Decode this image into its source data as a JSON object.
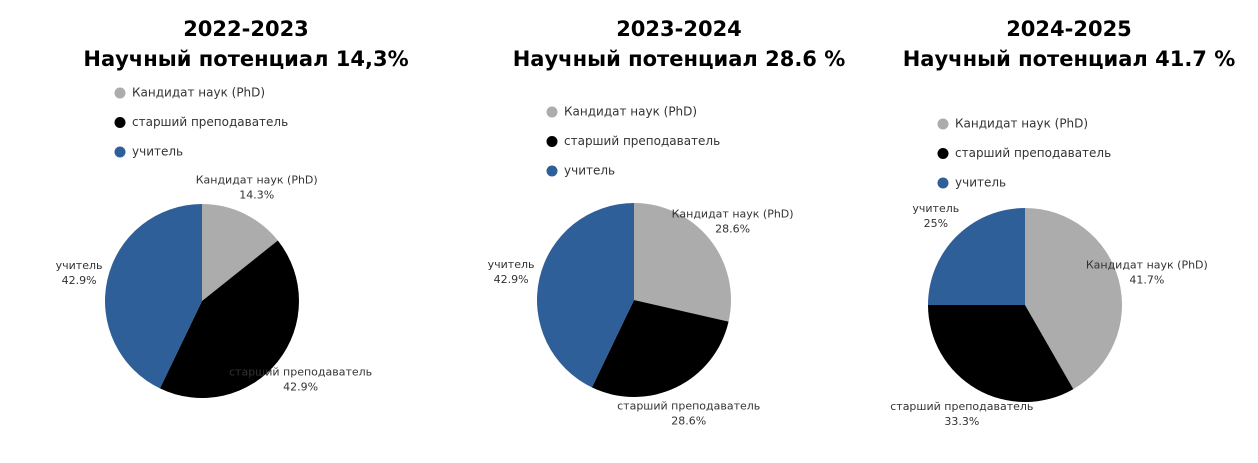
{
  "chart_data": [
    {
      "type": "pie",
      "title": "2022-2023",
      "subtitle": "Научный потенциал 14,3%",
      "categories": [
        "Кандидат наук (PhD)",
        "старший преподаватель",
        "учитель"
      ],
      "values": [
        14.3,
        42.9,
        42.9
      ],
      "value_labels": [
        "14.3%",
        "42.9%",
        "42.9%"
      ],
      "colors": [
        "#acacac",
        "#000000",
        "#2f5f98"
      ]
    },
    {
      "type": "pie",
      "title": "2023-2024",
      "subtitle": "Научный потенциал 28.6 %",
      "categories": [
        "Кандидат наук (PhD)",
        "старший преподаватель",
        "учитель"
      ],
      "values": [
        28.6,
        28.6,
        42.9
      ],
      "value_labels": [
        "28.6%",
        "28.6%",
        "42.9%"
      ],
      "colors": [
        "#acacac",
        "#000000",
        "#2f5f98"
      ]
    },
    {
      "type": "pie",
      "title": "2024-2025",
      "subtitle": "Научный потенциал 41.7 %",
      "categories": [
        "Кандидат наук (PhD)",
        "старший преподаватель",
        "учитель"
      ],
      "values": [
        41.7,
        33.3,
        25
      ],
      "value_labels": [
        "41.7%",
        "33.3%",
        "25%"
      ],
      "colors": [
        "#acacac",
        "#000000",
        "#2f5f98"
      ]
    }
  ]
}
